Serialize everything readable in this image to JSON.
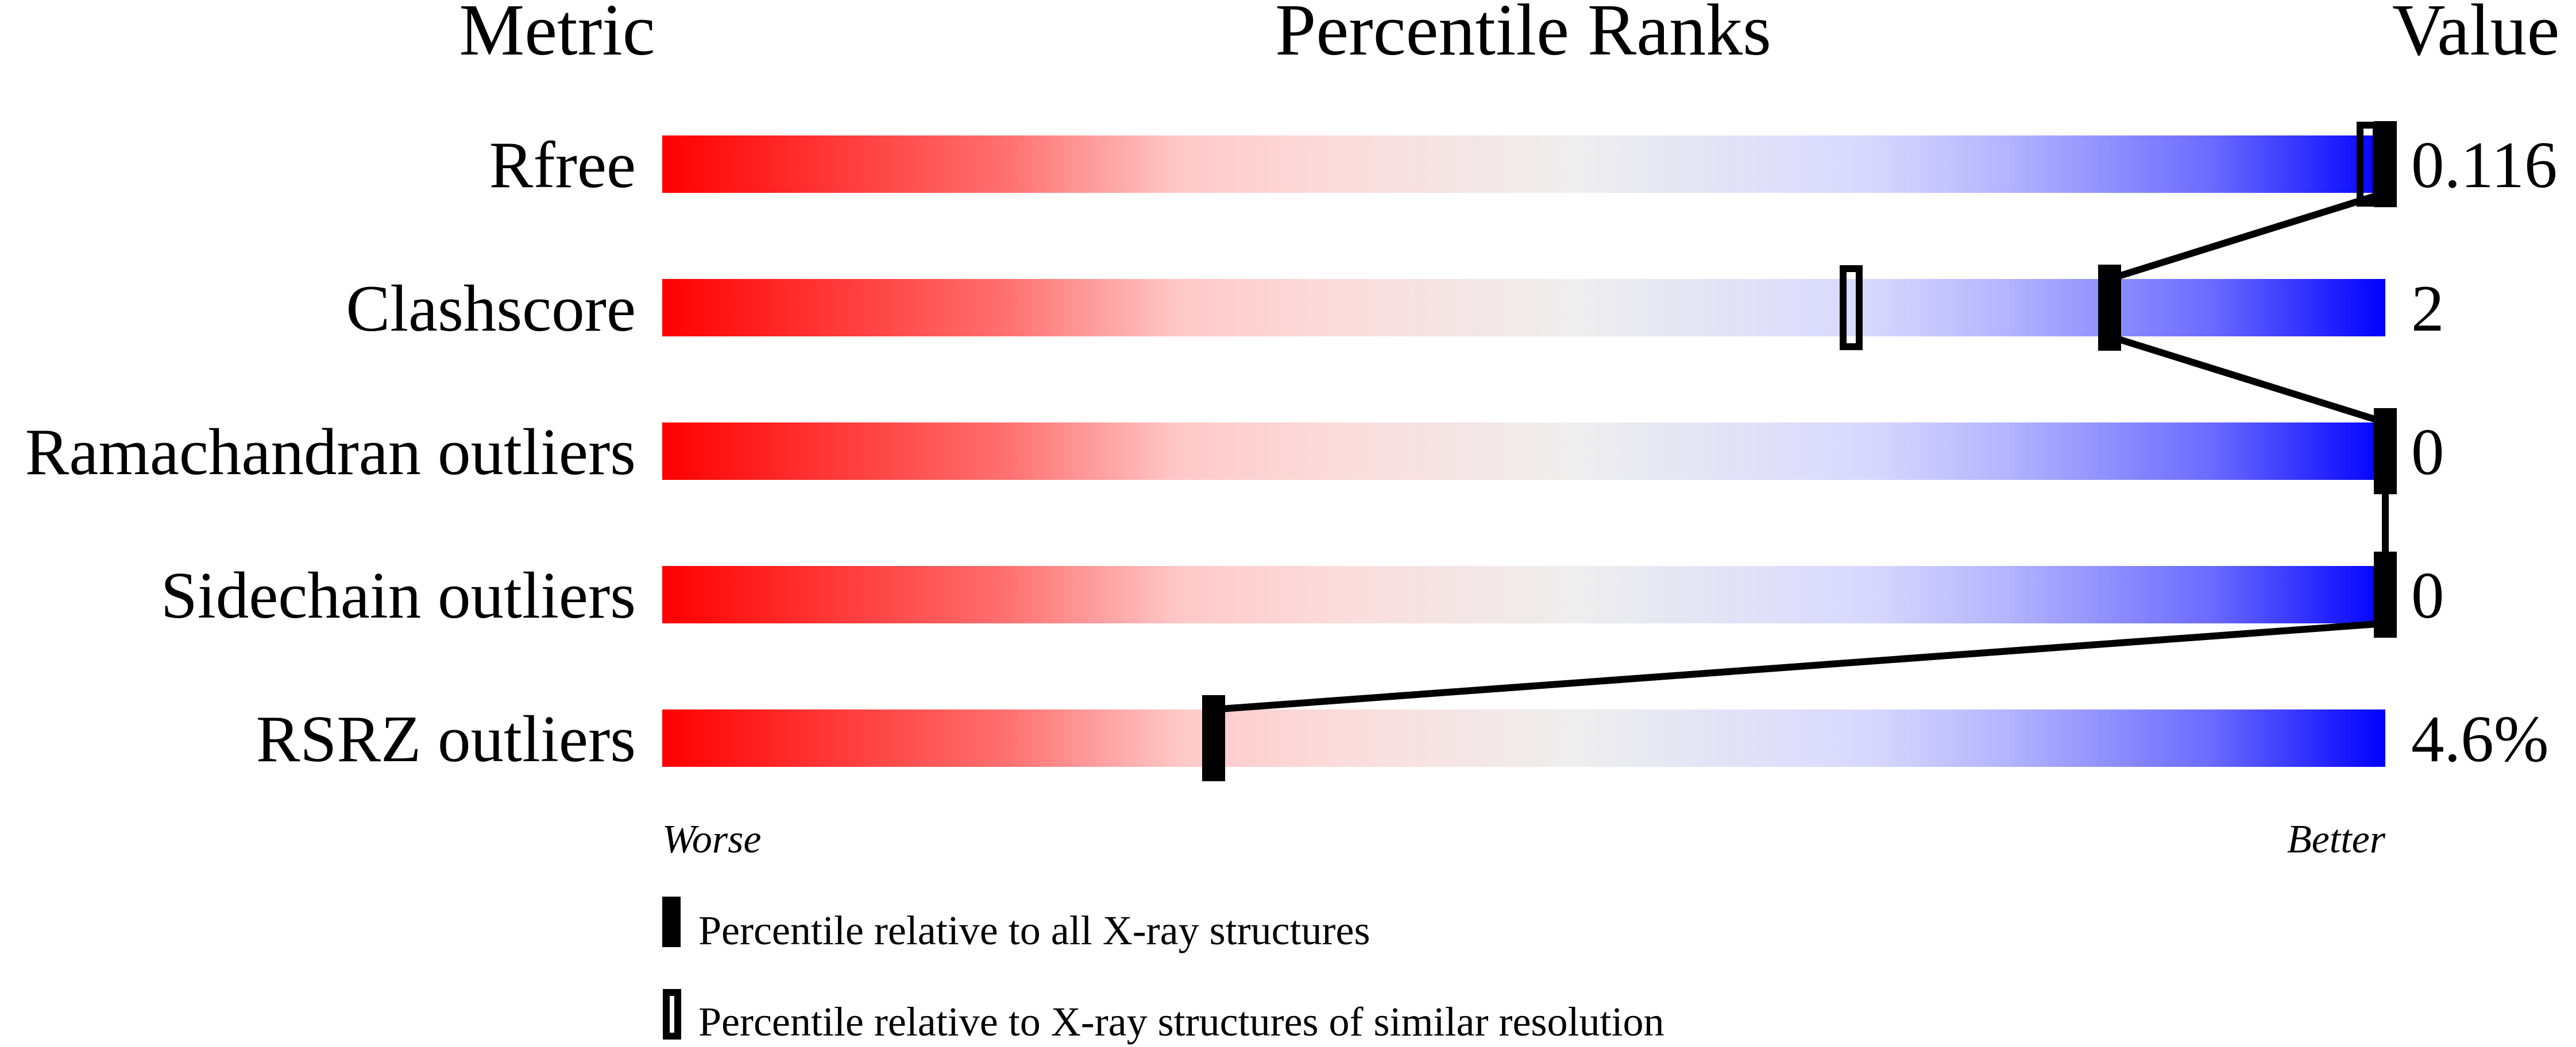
{
  "header": {
    "metric": "Metric",
    "percentile": "Percentile Ranks",
    "value": "Value"
  },
  "chart_data": {
    "type": "bar",
    "xlim": [
      0,
      100
    ],
    "rows": [
      {
        "metric": "Rfree",
        "value": "0.116",
        "percentile_all": 100,
        "percentile_similar": 99
      },
      {
        "metric": "Clashscore",
        "value": "2",
        "percentile_all": 84,
        "percentile_similar": 69
      },
      {
        "metric": "Ramachandran outliers",
        "value": "0",
        "percentile_all": 100,
        "percentile_similar": null
      },
      {
        "metric": "Sidechain outliers",
        "value": "0",
        "percentile_all": 100,
        "percentile_similar": null
      },
      {
        "metric": "RSRZ outliers",
        "value": "4.6%",
        "percentile_all": 32,
        "percentile_similar": null
      }
    ],
    "axis": {
      "left": "Worse",
      "right": "Better"
    },
    "legend": [
      {
        "marker": "filled",
        "label": "Percentile relative to all X-ray structures"
      },
      {
        "marker": "open",
        "label": "Percentile relative to X-ray structures of similar resolution"
      }
    ],
    "colors": {
      "worse": "#ff0000",
      "mid": "#eeeeee",
      "better": "#0000ff",
      "marker": "#000000"
    }
  }
}
